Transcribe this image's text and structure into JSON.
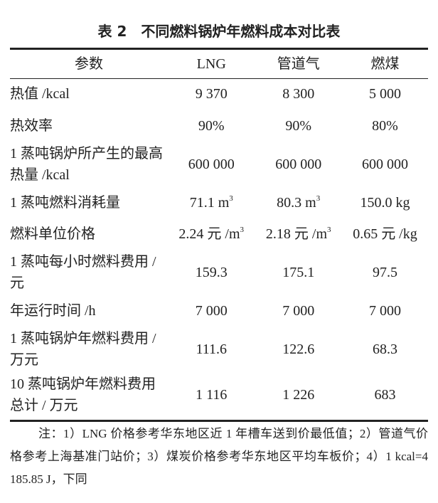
{
  "title": "表 2　不同燃料锅炉年燃料成本对比表",
  "headers": [
    "参数",
    "LNG",
    "管道气",
    "燃煤"
  ],
  "rows": [
    {
      "label": "热值 /kcal",
      "values": [
        {
          "t": "9 370"
        },
        {
          "t": "8 300"
        },
        {
          "t": "5 000"
        }
      ],
      "h": 45
    },
    {
      "label": "热效率",
      "values": [
        {
          "t": "90%"
        },
        {
          "t": "90%"
        },
        {
          "t": "80%"
        }
      ],
      "h": 45
    },
    {
      "label": "1 蒸吨锅炉所产生的最高热量 /kcal",
      "values": [
        {
          "t": "600 000"
        },
        {
          "t": "600 000"
        },
        {
          "t": "600 000"
        }
      ],
      "h": 64
    },
    {
      "label": "1 蒸吨燃料消耗量",
      "values": [
        {
          "t": "71.1 m",
          "sup": "3"
        },
        {
          "t": "80.3 m",
          "sup": "3"
        },
        {
          "t": "150.0 kg"
        }
      ],
      "h": 44
    },
    {
      "label": "燃料单位价格",
      "values": [
        {
          "t": "2.24 元 /m",
          "sup": "3"
        },
        {
          "t": "2.18 元 /m",
          "sup": "3"
        },
        {
          "t": "0.65 元 /kg"
        }
      ],
      "h": 44
    },
    {
      "label": "1 蒸吨每小时燃料费用 / 元",
      "values": [
        {
          "t": "159.3"
        },
        {
          "t": "175.1"
        },
        {
          "t": "97.5"
        }
      ],
      "h": 64
    },
    {
      "label": "年运行时间 /h",
      "values": [
        {
          "t": "7 000"
        },
        {
          "t": "7 000"
        },
        {
          "t": "7 000"
        }
      ],
      "h": 44
    },
    {
      "label": "1 蒸吨锅炉年燃料费用 / 万元",
      "values": [
        {
          "t": "111.6"
        },
        {
          "t": "122.6"
        },
        {
          "t": "68.3"
        }
      ],
      "h": 64
    },
    {
      "label": "10 蒸吨锅炉年燃料费用总计 / 万元",
      "values": [
        {
          "t": "1 116"
        },
        {
          "t": "1 226"
        },
        {
          "t": "683"
        }
      ],
      "h": 64
    }
  ],
  "notes": "注：1）LNG 价格参考华东地区近 1 年槽车送到价最低值；2）管道气价格参考上海基准门站价；3）煤炭价格参考华东地区平均车板价；4）1 kcal=4 185.85 J，下同"
}
